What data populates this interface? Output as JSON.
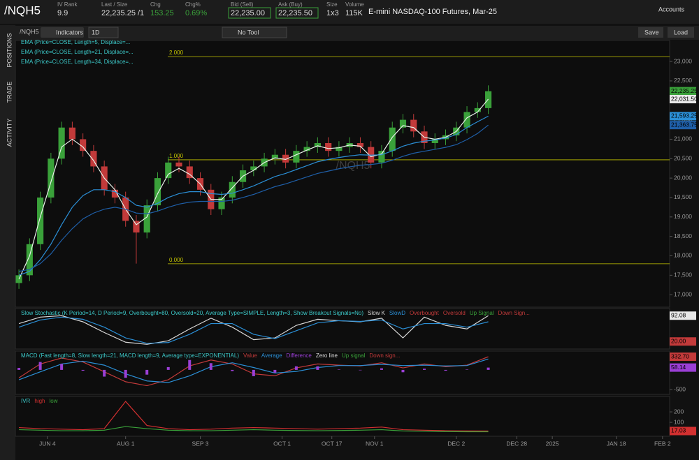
{
  "top_bar": {
    "symbol": "/NQH5",
    "fields": [
      {
        "label": "IV Rank",
        "value": "9.9"
      },
      {
        "label": "Last / Size",
        "value": "22,235.25 /1"
      },
      {
        "label": "Chg",
        "value": "153.25"
      },
      {
        "label": "Chg%",
        "value": "0.69%"
      },
      {
        "label": "Bid (Sell)",
        "value": "22,235.00"
      },
      {
        "label": "Ask (Buy)",
        "value": "22,235.50"
      },
      {
        "label": "Size",
        "value": "1x3"
      },
      {
        "label": "Volume",
        "value": "115K"
      }
    ],
    "description": "E-mini NASDAQ-100 Futures, Mar-25",
    "accounts": "Accounts"
  },
  "toolbar": {
    "symbol": "/NQH5",
    "indicators": "Indicators",
    "period": "1D",
    "tool": "No Tool",
    "save": "Save",
    "load": "Load"
  },
  "sidebar": [
    "POSITIONS",
    "TRADE",
    "ACTIVITY"
  ],
  "chart_data": [
    {
      "type": "candlestick",
      "watermark": "/NQH5",
      "legend": [
        "EMA (Price=CLOSE, Length=5, Displace=...",
        "EMA (Price=CLOSE, Length=21, Displace=...",
        "EMA (Price=CLOSE, Length=34, Displace=..."
      ],
      "x": [
        0,
        3,
        6,
        9,
        12,
        15,
        18,
        21,
        24,
        27,
        30,
        33,
        36,
        39,
        42,
        45,
        48,
        51,
        54,
        57,
        60,
        63,
        66,
        69,
        72,
        75,
        78,
        81,
        84,
        87,
        90,
        93,
        96,
        99,
        102,
        105,
        108,
        111,
        114,
        117,
        120,
        123,
        126,
        129,
        132
      ],
      "open": [
        17300,
        17500,
        18300,
        19500,
        20500,
        21300,
        21000,
        20700,
        20300,
        19700,
        19500,
        18900,
        18600,
        19300,
        20000,
        20400,
        20300,
        20000,
        19700,
        19200,
        19500,
        19900,
        20200,
        20300,
        20500,
        20600,
        20400,
        20700,
        20800,
        20900,
        20700,
        20800,
        20900,
        20800,
        20400,
        20700,
        21300,
        21500,
        21200,
        20900,
        21000,
        21100,
        21300,
        21700,
        21800
      ],
      "high": [
        17650,
        18450,
        19650,
        20650,
        21450,
        21450,
        21150,
        20850,
        20450,
        19850,
        19650,
        19050,
        19450,
        20150,
        20550,
        20550,
        20450,
        20150,
        19850,
        19650,
        20050,
        20350,
        20450,
        20650,
        20750,
        20750,
        20850,
        20950,
        21050,
        21050,
        20950,
        21050,
        21050,
        20950,
        20850,
        21450,
        21650,
        21650,
        21350,
        21150,
        21250,
        21450,
        21850,
        21950,
        22385
      ],
      "low": [
        17150,
        17350,
        18150,
        19350,
        20350,
        20850,
        20550,
        20150,
        19550,
        19350,
        18750,
        17800,
        18450,
        19150,
        19850,
        20150,
        19850,
        19550,
        19050,
        19050,
        19350,
        19750,
        20050,
        20150,
        20350,
        20250,
        20250,
        20550,
        20650,
        20550,
        20550,
        20650,
        20650,
        20250,
        20250,
        20550,
        21150,
        21050,
        20750,
        20750,
        20850,
        20950,
        21150,
        21550,
        21650
      ],
      "close": [
        17500,
        18300,
        19500,
        20500,
        21300,
        21000,
        20700,
        20300,
        19700,
        19500,
        18900,
        18600,
        19300,
        20000,
        20400,
        20300,
        20000,
        19700,
        19200,
        19500,
        19900,
        20200,
        20300,
        20500,
        20600,
        20400,
        20700,
        20800,
        20900,
        20700,
        20800,
        20900,
        20800,
        20400,
        20700,
        21300,
        21500,
        21200,
        20900,
        21000,
        21100,
        21300,
        21700,
        21800,
        22235.25
      ],
      "up_color": "#3aa13a",
      "down_color": "#c23a3a",
      "series": [
        {
          "color": "#e8f0e8",
          "values": [
            17400,
            18000,
            19000,
            19900,
            20800,
            21000,
            20800,
            20450,
            20000,
            19700,
            19200,
            18800,
            19000,
            19600,
            20100,
            20250,
            20100,
            19850,
            19450,
            19450,
            19750,
            20050,
            20200,
            20400,
            20520,
            20480,
            20600,
            20720,
            20830,
            20760,
            20780,
            20850,
            20820,
            20550,
            20620,
            21050,
            21350,
            21300,
            21050,
            21000,
            21050,
            21200,
            21550,
            21700,
            22031.5
          ]
        },
        {
          "color": "#2b8fd6",
          "values": [
            17500,
            17600,
            17900,
            18300,
            18800,
            19250,
            19550,
            19700,
            19700,
            19650,
            19500,
            19300,
            19250,
            19350,
            19500,
            19600,
            19650,
            19650,
            19600,
            19580,
            19610,
            19700,
            19800,
            19920,
            20040,
            20120,
            20220,
            20320,
            20420,
            20480,
            20530,
            20570,
            20600,
            20590,
            20600,
            20700,
            20820,
            20900,
            20950,
            20980,
            21030,
            21120,
            21300,
            21450,
            21593.25
          ]
        },
        {
          "color": "#1f5fa8",
          "values": [
            17600,
            17650,
            17800,
            18050,
            18400,
            18700,
            18950,
            19100,
            19200,
            19250,
            19200,
            19100,
            19080,
            19150,
            19250,
            19330,
            19380,
            19400,
            19400,
            19400,
            19430,
            19500,
            19580,
            19680,
            19780,
            19850,
            19940,
            20030,
            20120,
            20180,
            20240,
            20290,
            20330,
            20350,
            20380,
            20460,
            20560,
            20640,
            20690,
            20740,
            20790,
            20860,
            20990,
            21150,
            21363.75
          ]
        }
      ],
      "fib_levels": [
        {
          "value": 23125,
          "label": "2.000"
        },
        {
          "value": 20470,
          "label": "1.000"
        },
        {
          "value": 17795,
          "label": "0.000"
        }
      ],
      "badges": [
        {
          "value": 22235.25,
          "label": "22,235.25",
          "color": "#3aa13a"
        },
        {
          "value": 22031.5,
          "label": "22,031.50",
          "color": "#e8e8e8"
        },
        {
          "value": 21593.25,
          "label": "21,593.25",
          "color": "#2b8fd6"
        },
        {
          "value": 21363.75,
          "label": "21,363.75",
          "color": "#1f5fa8"
        }
      ],
      "xlim": [
        -1,
        183
      ],
      "ylim": [
        16680,
        23540
      ],
      "yticks": [
        {
          "value": 23000,
          "label": "23,000"
        },
        {
          "value": 22500,
          "label": "22,500"
        },
        {
          "value": 22000,
          "label": "22,000"
        },
        {
          "value": 21500,
          "label": "21,500"
        },
        {
          "value": 21000,
          "label": "21,000"
        },
        {
          "value": 20500,
          "label": "20,500"
        },
        {
          "value": 20000,
          "label": "20,000"
        },
        {
          "value": 19500,
          "label": "19,500"
        },
        {
          "value": 19000,
          "label": "19,000"
        },
        {
          "value": 18500,
          "label": "18,500"
        },
        {
          "value": 18000,
          "label": "18,000"
        },
        {
          "value": 17500,
          "label": "17,500"
        },
        {
          "value": 17000,
          "label": "17,000"
        }
      ],
      "xticks": [
        {
          "value": 8,
          "label": "JUN 4"
        },
        {
          "value": 30,
          "label": "AUG 1"
        },
        {
          "value": 51,
          "label": "SEP 3"
        },
        {
          "value": 74,
          "label": "OCT 1"
        },
        {
          "value": 88,
          "label": "OCT 17"
        },
        {
          "value": 100,
          "label": "NOV 1"
        },
        {
          "value": 123,
          "label": "DEC 2"
        },
        {
          "value": 140,
          "label": "DEC 28"
        },
        {
          "value": 150,
          "label": "2025"
        },
        {
          "value": 168,
          "label": "JAN 18"
        },
        {
          "value": 181,
          "label": "FEB 2"
        }
      ]
    },
    {
      "type": "line",
      "title": "Slow Stochastic (K Period=14, D Period=9, Overbought=80, Oversold=20, Average Type=SIMPLE, Length=3, Show Breakout Signals=No)",
      "x": [
        0,
        6,
        12,
        18,
        24,
        30,
        36,
        42,
        48,
        54,
        60,
        66,
        72,
        78,
        84,
        90,
        96,
        102,
        108,
        114,
        120,
        126,
        132
      ],
      "series": [
        {
          "name": "Slow K",
          "color": "#d8d8d8",
          "values": [
            70,
            88,
            92,
            75,
            45,
            18,
            12,
            22,
            55,
            85,
            60,
            25,
            30,
            65,
            82,
            78,
            75,
            85,
            30,
            88,
            65,
            55,
            92.08
          ]
        },
        {
          "name": "SlowD",
          "color": "#2b8fd6",
          "values": [
            60,
            80,
            88,
            82,
            60,
            30,
            15,
            17,
            40,
            70,
            70,
            40,
            28,
            50,
            72,
            78,
            76,
            80,
            55,
            70,
            70,
            60,
            75
          ]
        }
      ],
      "extra_legend": [
        {
          "name": "Overbought",
          "color": "#c23a3a"
        },
        {
          "name": "Oversold",
          "color": "#c23a3a"
        },
        {
          "name": "Up Signal",
          "color": "#3aa13a"
        },
        {
          "name": "Down Sign...",
          "color": "#c23a3a"
        }
      ],
      "badges": [
        {
          "value": 92.08,
          "label": "92.08",
          "color": "#e8e8e8"
        },
        {
          "value": 20,
          "label": "20.00",
          "color": "#c23a3a"
        }
      ],
      "ylim": [
        -1,
        112
      ]
    },
    {
      "type": "line",
      "title": "MACD (Fast length=8, Slow length=21, MACD length=9, Average type=EXPONENTIAL)",
      "x": [
        0,
        6,
        12,
        18,
        24,
        30,
        36,
        42,
        48,
        54,
        60,
        66,
        72,
        78,
        84,
        90,
        96,
        102,
        108,
        114,
        120,
        126,
        132
      ],
      "series": [
        {
          "name": "Value",
          "color": "#c23a3a",
          "values": [
            -200,
            150,
            300,
            200,
            -50,
            -300,
            -400,
            -250,
            100,
            250,
            150,
            -100,
            -150,
            50,
            150,
            120,
            100,
            180,
            50,
            150,
            80,
            120,
            332.7
          ]
        },
        {
          "name": "Average",
          "color": "#2b8fd6",
          "values": [
            -250,
            -50,
            150,
            220,
            120,
            -100,
            -280,
            -320,
            -150,
            80,
            180,
            60,
            -80,
            -40,
            60,
            110,
            110,
            140,
            110,
            120,
            100,
            110,
            274.56
          ]
        },
        {
          "name": "Difference",
          "color": "#9b3fd6",
          "style": "histogram",
          "values": [
            50,
            200,
            150,
            -20,
            -170,
            -200,
            -120,
            70,
            250,
            170,
            -30,
            -160,
            -70,
            90,
            90,
            10,
            -10,
            40,
            -60,
            30,
            -20,
            10,
            58.14
          ]
        }
      ],
      "extra_legend": [
        {
          "name": "Zero line",
          "color": "#dddddd"
        },
        {
          "name": "Up signal",
          "color": "#3aa13a"
        },
        {
          "name": "Down sign...",
          "color": "#c23a3a"
        }
      ],
      "badges": [
        {
          "value": 332.7,
          "label": "332.70",
          "color": "#c23a3a"
        },
        {
          "value": 58.14,
          "label": "58.14",
          "color": "#9b3fd6"
        }
      ],
      "ylim": [
        -620,
        475
      ],
      "yticks": [
        {
          "value": -500,
          "label": "-500"
        }
      ]
    },
    {
      "type": "line",
      "title": "IVR",
      "x": [
        0,
        6,
        12,
        18,
        24,
        30,
        36,
        42,
        48,
        54,
        60,
        66,
        72,
        78,
        84,
        90,
        96,
        102,
        108,
        114,
        120,
        126,
        132
      ],
      "series": [
        {
          "name": "high",
          "color": "#d23030",
          "values": [
            50,
            40,
            35,
            30,
            40,
            300,
            70,
            40,
            30,
            35,
            45,
            50,
            45,
            40,
            35,
            40,
            45,
            55,
            30,
            25,
            20,
            18,
            17.03
          ]
        },
        {
          "name": "low",
          "color": "#3aa13a",
          "values": [
            30,
            25,
            20,
            20,
            25,
            60,
            40,
            25,
            20,
            20,
            25,
            30,
            25,
            22,
            20,
            22,
            25,
            30,
            18,
            15,
            12,
            10,
            10
          ]
        }
      ],
      "badges": [
        {
          "value": 17.03,
          "label": "17.03",
          "color": "#d23030"
        }
      ],
      "ylim": [
        -33,
        347
      ],
      "yticks": [
        100,
        200
      ]
    }
  ]
}
